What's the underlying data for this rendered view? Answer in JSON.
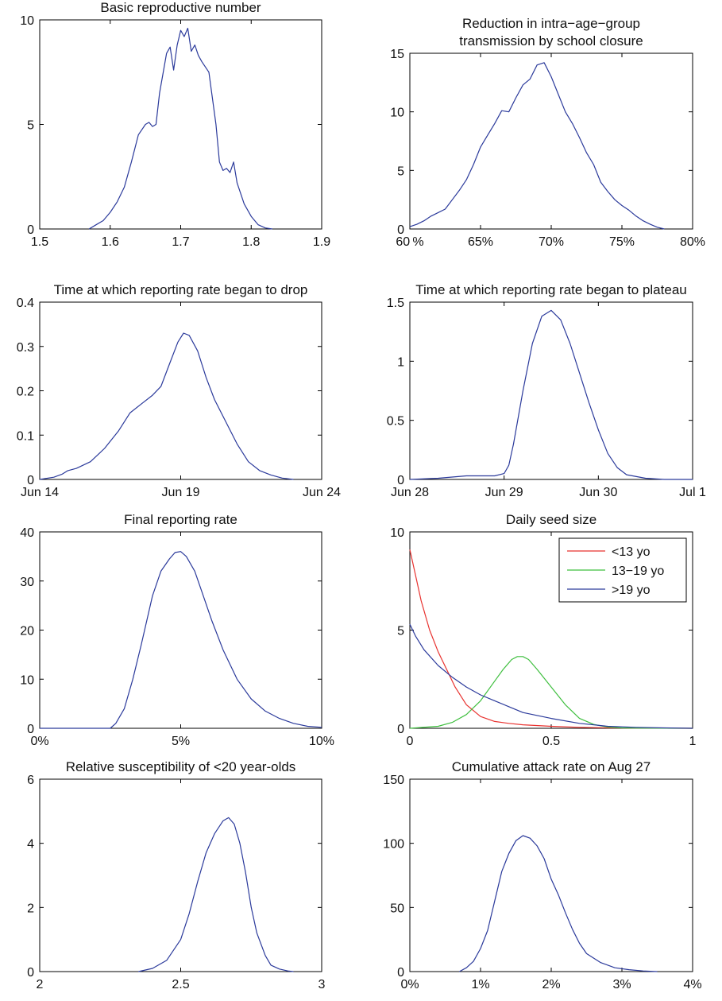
{
  "chart_data": [
    {
      "type": "line",
      "title_lines": [
        "Basic reproductive number"
      ],
      "xlabel": "",
      "ylabel": "",
      "xlim": [
        1.5,
        1.9
      ],
      "ylim": [
        0,
        10
      ],
      "xticks": [
        1.5,
        1.6,
        1.7,
        1.8,
        1.9
      ],
      "xtick_labels": [
        "1.5",
        "1.6",
        "1.7",
        "1.8",
        "1.9"
      ],
      "yticks": [
        0,
        5,
        10
      ],
      "ytick_labels": [
        "0",
        "5",
        "10"
      ],
      "grid": false,
      "series": [
        {
          "color": "#2b3a9b",
          "x": [
            1.57,
            1.58,
            1.59,
            1.6,
            1.61,
            1.62,
            1.63,
            1.64,
            1.65,
            1.655,
            1.66,
            1.665,
            1.67,
            1.68,
            1.685,
            1.69,
            1.695,
            1.7,
            1.705,
            1.71,
            1.715,
            1.72,
            1.725,
            1.73,
            1.74,
            1.75,
            1.755,
            1.76,
            1.765,
            1.77,
            1.775,
            1.78,
            1.79,
            1.8,
            1.81,
            1.82,
            1.83
          ],
          "y": [
            0,
            0.2,
            0.4,
            0.8,
            1.3,
            2.0,
            3.2,
            4.5,
            5.0,
            5.1,
            4.9,
            5.0,
            6.5,
            8.4,
            8.7,
            7.6,
            8.8,
            9.5,
            9.2,
            9.6,
            8.5,
            8.8,
            8.3,
            8.0,
            7.5,
            5.0,
            3.2,
            2.8,
            2.9,
            2.7,
            3.2,
            2.2,
            1.2,
            0.6,
            0.2,
            0.05,
            0
          ]
        }
      ]
    },
    {
      "type": "line",
      "title_lines": [
        "Reduction in intra−age−group",
        "transmission by school closure"
      ],
      "xlabel": "",
      "ylabel": "",
      "xlim": [
        0.6,
        0.8
      ],
      "ylim": [
        0,
        15
      ],
      "xticks": [
        0.6,
        0.65,
        0.7,
        0.75,
        0.8
      ],
      "xtick_labels": [
        "60 %",
        "65%",
        "70%",
        "75%",
        "80%"
      ],
      "yticks": [
        0,
        5,
        10,
        15
      ],
      "ytick_labels": [
        "0",
        "5",
        "10",
        "15"
      ],
      "grid": false,
      "series": [
        {
          "color": "#2b3a9b",
          "x": [
            0.6,
            0.605,
            0.61,
            0.615,
            0.62,
            0.625,
            0.63,
            0.635,
            0.64,
            0.645,
            0.65,
            0.655,
            0.66,
            0.665,
            0.67,
            0.675,
            0.68,
            0.685,
            0.69,
            0.695,
            0.7,
            0.705,
            0.71,
            0.715,
            0.72,
            0.725,
            0.73,
            0.735,
            0.74,
            0.745,
            0.75,
            0.755,
            0.76,
            0.765,
            0.77,
            0.775,
            0.78
          ],
          "y": [
            0.2,
            0.4,
            0.7,
            1.1,
            1.4,
            1.7,
            2.5,
            3.3,
            4.2,
            5.5,
            7.0,
            8.0,
            9.0,
            10.1,
            10.0,
            11.2,
            12.3,
            12.8,
            14.0,
            14.2,
            13.0,
            11.5,
            10.0,
            9.0,
            7.8,
            6.5,
            5.5,
            4.0,
            3.2,
            2.5,
            2.0,
            1.6,
            1.1,
            0.7,
            0.4,
            0.15,
            0
          ]
        }
      ]
    },
    {
      "type": "line",
      "title_lines": [
        "Time at which reporting rate began to drop"
      ],
      "xlabel": "",
      "ylabel": "",
      "xlim": [
        0,
        10
      ],
      "ylim": [
        0,
        0.4
      ],
      "xticks": [
        0,
        5,
        10
      ],
      "xtick_labels": [
        "Jun 14",
        "Jun 19",
        "Jun 24"
      ],
      "yticks": [
        0,
        0.1,
        0.2,
        0.3,
        0.4
      ],
      "ytick_labels": [
        "0",
        "0.1",
        "0.2",
        "0.3",
        "0.4"
      ],
      "grid": false,
      "series": [
        {
          "color": "#2b3a9b",
          "x": [
            0,
            0.5,
            0.8,
            1.0,
            1.3,
            1.8,
            2.3,
            2.8,
            3.2,
            3.6,
            4.0,
            4.3,
            4.6,
            4.9,
            5.1,
            5.3,
            5.6,
            5.9,
            6.2,
            6.6,
            7.0,
            7.4,
            7.8,
            8.2,
            8.6,
            9.0
          ],
          "y": [
            0,
            0.005,
            0.012,
            0.02,
            0.025,
            0.04,
            0.07,
            0.11,
            0.15,
            0.17,
            0.19,
            0.21,
            0.26,
            0.31,
            0.33,
            0.325,
            0.29,
            0.23,
            0.18,
            0.13,
            0.08,
            0.04,
            0.02,
            0.01,
            0.003,
            0
          ]
        }
      ]
    },
    {
      "type": "line",
      "title_lines": [
        "Time at which reporting rate began to plateau"
      ],
      "xlabel": "",
      "ylabel": "",
      "xlim": [
        0,
        3
      ],
      "ylim": [
        0,
        1.5
      ],
      "xticks": [
        0,
        1,
        2,
        3
      ],
      "xtick_labels": [
        "Jun 28",
        "Jun 29",
        "Jun 30",
        "Jul 1"
      ],
      "yticks": [
        0,
        0.5,
        1,
        1.5
      ],
      "ytick_labels": [
        "0",
        "0.5",
        "1",
        "1.5"
      ],
      "grid": false,
      "series": [
        {
          "color": "#2b3a9b",
          "x": [
            0,
            0.3,
            0.6,
            0.9,
            1.0,
            1.05,
            1.1,
            1.2,
            1.3,
            1.4,
            1.5,
            1.6,
            1.7,
            1.8,
            1.9,
            2.0,
            2.1,
            2.2,
            2.3,
            2.5,
            2.7,
            3.0
          ],
          "y": [
            0,
            0.01,
            0.03,
            0.03,
            0.05,
            0.12,
            0.3,
            0.75,
            1.15,
            1.38,
            1.43,
            1.35,
            1.15,
            0.9,
            0.65,
            0.42,
            0.22,
            0.1,
            0.04,
            0.01,
            0,
            0
          ]
        }
      ]
    },
    {
      "type": "line",
      "title_lines": [
        "Final reporting rate"
      ],
      "xlabel": "",
      "ylabel": "",
      "xlim": [
        0,
        0.1
      ],
      "ylim": [
        0,
        40
      ],
      "xticks": [
        0,
        0.05,
        0.1
      ],
      "xtick_labels": [
        "0%",
        "5%",
        "10%"
      ],
      "yticks": [
        0,
        10,
        20,
        30,
        40
      ],
      "ytick_labels": [
        "0",
        "10",
        "20",
        "30",
        "40"
      ],
      "grid": false,
      "series": [
        {
          "color": "#2b3a9b",
          "x": [
            0,
            0.025,
            0.027,
            0.03,
            0.033,
            0.036,
            0.04,
            0.043,
            0.046,
            0.048,
            0.05,
            0.052,
            0.055,
            0.058,
            0.061,
            0.065,
            0.07,
            0.075,
            0.08,
            0.085,
            0.09,
            0.095,
            0.1
          ],
          "y": [
            0,
            0,
            1,
            4,
            10,
            17,
            27,
            32,
            34.5,
            35.8,
            36,
            35,
            32,
            27,
            22,
            16,
            10,
            6,
            3.5,
            2,
            1,
            0.4,
            0.2
          ]
        }
      ]
    },
    {
      "type": "line",
      "title_lines": [
        "Daily seed size"
      ],
      "xlabel": "",
      "ylabel": "",
      "xlim": [
        0,
        1
      ],
      "ylim": [
        0,
        10
      ],
      "xticks": [
        0,
        0.5,
        1
      ],
      "xtick_labels": [
        "0",
        "0.5",
        "1"
      ],
      "yticks": [
        0,
        5,
        10
      ],
      "ytick_labels": [
        "0",
        "5",
        "10"
      ],
      "grid": false,
      "legend_position": "top-right",
      "series": [
        {
          "name": "<13 yo",
          "color": "#e8322f",
          "x": [
            0,
            0.02,
            0.04,
            0.07,
            0.1,
            0.13,
            0.16,
            0.2,
            0.25,
            0.3,
            0.35,
            0.4,
            0.5,
            0.6,
            0.7,
            0.8,
            1.0
          ],
          "y": [
            9.1,
            7.8,
            6.5,
            5.0,
            3.9,
            3.0,
            2.1,
            1.2,
            0.6,
            0.35,
            0.25,
            0.18,
            0.1,
            0.05,
            0.02,
            0.01,
            0
          ]
        },
        {
          "name": "13−19 yo",
          "color": "#3fbf3f",
          "x": [
            0,
            0.1,
            0.15,
            0.2,
            0.25,
            0.3,
            0.33,
            0.36,
            0.38,
            0.4,
            0.42,
            0.45,
            0.5,
            0.55,
            0.6,
            0.65,
            0.7,
            0.75,
            0.8,
            1.0
          ],
          "y": [
            0,
            0.1,
            0.3,
            0.7,
            1.4,
            2.4,
            3.0,
            3.5,
            3.65,
            3.65,
            3.5,
            3.0,
            2.1,
            1.2,
            0.5,
            0.2,
            0.06,
            0.02,
            0.01,
            0
          ]
        },
        {
          "name": ">19 yo",
          "color": "#2b3a9b",
          "x": [
            0,
            0.02,
            0.05,
            0.1,
            0.15,
            0.2,
            0.25,
            0.3,
            0.35,
            0.4,
            0.5,
            0.6,
            0.7,
            0.8,
            0.9,
            1.0
          ],
          "y": [
            5.3,
            4.7,
            4.0,
            3.2,
            2.6,
            2.1,
            1.7,
            1.4,
            1.1,
            0.8,
            0.5,
            0.25,
            0.1,
            0.05,
            0.02,
            0
          ]
        }
      ]
    },
    {
      "type": "line",
      "title_lines": [
        "Relative susceptibility of <20 year-olds"
      ],
      "xlabel": "",
      "ylabel": "",
      "xlim": [
        2,
        3
      ],
      "ylim": [
        0,
        6
      ],
      "xticks": [
        2,
        2.5,
        3
      ],
      "xtick_labels": [
        "2",
        "2.5",
        "3"
      ],
      "yticks": [
        0,
        2,
        4,
        6
      ],
      "ytick_labels": [
        "0",
        "2",
        "4",
        "6"
      ],
      "grid": false,
      "series": [
        {
          "color": "#2b3a9b",
          "x": [
            2.35,
            2.4,
            2.45,
            2.5,
            2.53,
            2.56,
            2.59,
            2.62,
            2.65,
            2.67,
            2.69,
            2.71,
            2.73,
            2.75,
            2.77,
            2.8,
            2.82,
            2.85,
            2.88,
            2.9
          ],
          "y": [
            0,
            0.1,
            0.35,
            1.0,
            1.8,
            2.8,
            3.7,
            4.3,
            4.7,
            4.8,
            4.6,
            4.0,
            3.1,
            2.0,
            1.2,
            0.5,
            0.2,
            0.08,
            0.02,
            0
          ]
        }
      ]
    },
    {
      "type": "line",
      "title_lines": [
        "Cumulative attack rate on Aug 27"
      ],
      "xlabel": "",
      "ylabel": "",
      "xlim": [
        0,
        0.04
      ],
      "ylim": [
        0,
        150
      ],
      "xticks": [
        0,
        0.01,
        0.02,
        0.03,
        0.04
      ],
      "xtick_labels": [
        "0%",
        "1%",
        "2%",
        "3%",
        "4%"
      ],
      "yticks": [
        0,
        50,
        100,
        150
      ],
      "ytick_labels": [
        "0",
        "50",
        "100",
        "150"
      ],
      "grid": false,
      "series": [
        {
          "color": "#2b3a9b",
          "x": [
            0.007,
            0.008,
            0.009,
            0.01,
            0.011,
            0.012,
            0.013,
            0.014,
            0.015,
            0.016,
            0.017,
            0.018,
            0.019,
            0.02,
            0.021,
            0.022,
            0.023,
            0.024,
            0.025,
            0.027,
            0.029,
            0.031,
            0.033,
            0.035
          ],
          "y": [
            0,
            3,
            8,
            18,
            32,
            55,
            78,
            92,
            102,
            106,
            104,
            98,
            88,
            72,
            60,
            46,
            33,
            22,
            14,
            7,
            3,
            1.5,
            0.5,
            0
          ]
        }
      ]
    }
  ]
}
